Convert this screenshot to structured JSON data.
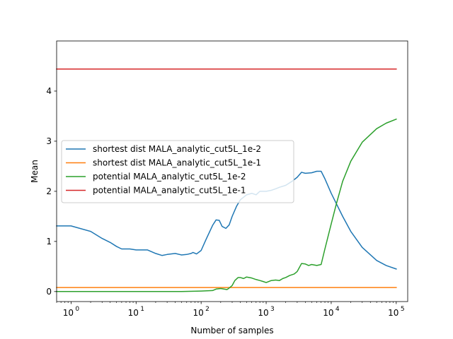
{
  "chart_data": {
    "type": "line",
    "xscale": "log",
    "xlim": [
      0.6,
      150000
    ],
    "ylim": [
      -0.2,
      5.0
    ],
    "xlabel": "Number of samples",
    "ylabel": "Mean",
    "grid": false,
    "legend_position": "center-left",
    "x_ticks": [
      {
        "value": 1,
        "base": "10",
        "exp": "0"
      },
      {
        "value": 10,
        "base": "10",
        "exp": "1"
      },
      {
        "value": 100,
        "base": "10",
        "exp": "2"
      },
      {
        "value": 1000,
        "base": "10",
        "exp": "3"
      },
      {
        "value": 10000,
        "base": "10",
        "exp": "4"
      },
      {
        "value": 100000,
        "base": "10",
        "exp": "5"
      }
    ],
    "y_ticks": [
      {
        "value": 0,
        "label": "0"
      },
      {
        "value": 1,
        "label": "1"
      },
      {
        "value": 2,
        "label": "2"
      },
      {
        "value": 3,
        "label": "3"
      },
      {
        "value": 4,
        "label": "4"
      }
    ],
    "series": [
      {
        "name": "shortest dist MALA_analytic_cut5L_1e-2",
        "color": "#1f77b4",
        "points": [
          [
            0.6,
            1.31
          ],
          [
            1,
            1.31
          ],
          [
            2,
            1.2
          ],
          [
            3,
            1.06
          ],
          [
            4,
            0.98
          ],
          [
            5,
            0.9
          ],
          [
            6,
            0.85
          ],
          [
            8,
            0.85
          ],
          [
            10,
            0.83
          ],
          [
            15,
            0.83
          ],
          [
            20,
            0.76
          ],
          [
            25,
            0.72
          ],
          [
            30,
            0.74
          ],
          [
            40,
            0.76
          ],
          [
            50,
            0.73
          ],
          [
            60,
            0.74
          ],
          [
            70,
            0.76
          ],
          [
            75,
            0.78
          ],
          [
            85,
            0.75
          ],
          [
            100,
            0.82
          ],
          [
            120,
            1.05
          ],
          [
            150,
            1.32
          ],
          [
            170,
            1.43
          ],
          [
            190,
            1.42
          ],
          [
            210,
            1.3
          ],
          [
            240,
            1.26
          ],
          [
            270,
            1.33
          ],
          [
            300,
            1.5
          ],
          [
            350,
            1.7
          ],
          [
            400,
            1.83
          ],
          [
            500,
            1.93
          ],
          [
            600,
            1.96
          ],
          [
            700,
            1.93
          ],
          [
            800,
            2.0
          ],
          [
            1000,
            2.0
          ],
          [
            1200,
            2.02
          ],
          [
            1400,
            2.05
          ],
          [
            1600,
            2.08
          ],
          [
            2000,
            2.12
          ],
          [
            2500,
            2.2
          ],
          [
            3000,
            2.28
          ],
          [
            3500,
            2.38
          ],
          [
            4000,
            2.36
          ],
          [
            5000,
            2.37
          ],
          [
            6000,
            2.4
          ],
          [
            7000,
            2.4
          ],
          [
            8000,
            2.25
          ],
          [
            10000,
            1.96
          ],
          [
            15000,
            1.5
          ],
          [
            20000,
            1.2
          ],
          [
            30000,
            0.88
          ],
          [
            50000,
            0.62
          ],
          [
            70000,
            0.52
          ],
          [
            100000,
            0.45
          ]
        ]
      },
      {
        "name": "shortest dist MALA_analytic_cut5L_1e-1",
        "color": "#ff7f0e",
        "points": [
          [
            0.6,
            0.08
          ],
          [
            100000,
            0.08
          ]
        ]
      },
      {
        "name": "potential MALA_analytic_cut5L_1e-2",
        "color": "#2ca02c",
        "points": [
          [
            0.6,
            0.0
          ],
          [
            50,
            0.0
          ],
          [
            100,
            0.01
          ],
          [
            150,
            0.02
          ],
          [
            170,
            0.05
          ],
          [
            200,
            0.06
          ],
          [
            250,
            0.04
          ],
          [
            270,
            0.07
          ],
          [
            300,
            0.12
          ],
          [
            330,
            0.22
          ],
          [
            370,
            0.28
          ],
          [
            400,
            0.28
          ],
          [
            450,
            0.26
          ],
          [
            500,
            0.29
          ],
          [
            600,
            0.27
          ],
          [
            700,
            0.24
          ],
          [
            800,
            0.22
          ],
          [
            900,
            0.2
          ],
          [
            1000,
            0.18
          ],
          [
            1200,
            0.22
          ],
          [
            1400,
            0.23
          ],
          [
            1600,
            0.22
          ],
          [
            1800,
            0.26
          ],
          [
            2000,
            0.28
          ],
          [
            2300,
            0.32
          ],
          [
            2700,
            0.35
          ],
          [
            3000,
            0.4
          ],
          [
            3500,
            0.56
          ],
          [
            4000,
            0.55
          ],
          [
            4500,
            0.52
          ],
          [
            5000,
            0.54
          ],
          [
            6000,
            0.52
          ],
          [
            7000,
            0.54
          ],
          [
            8000,
            0.85
          ],
          [
            10000,
            1.35
          ],
          [
            12000,
            1.75
          ],
          [
            15000,
            2.2
          ],
          [
            20000,
            2.6
          ],
          [
            30000,
            2.98
          ],
          [
            50000,
            3.25
          ],
          [
            70000,
            3.36
          ],
          [
            100000,
            3.44
          ]
        ]
      },
      {
        "name": "potential MALA_analytic_cut5L_1e-1",
        "color": "#d62728",
        "points": [
          [
            0.6,
            4.44
          ],
          [
            100000,
            4.44
          ]
        ]
      }
    ]
  }
}
